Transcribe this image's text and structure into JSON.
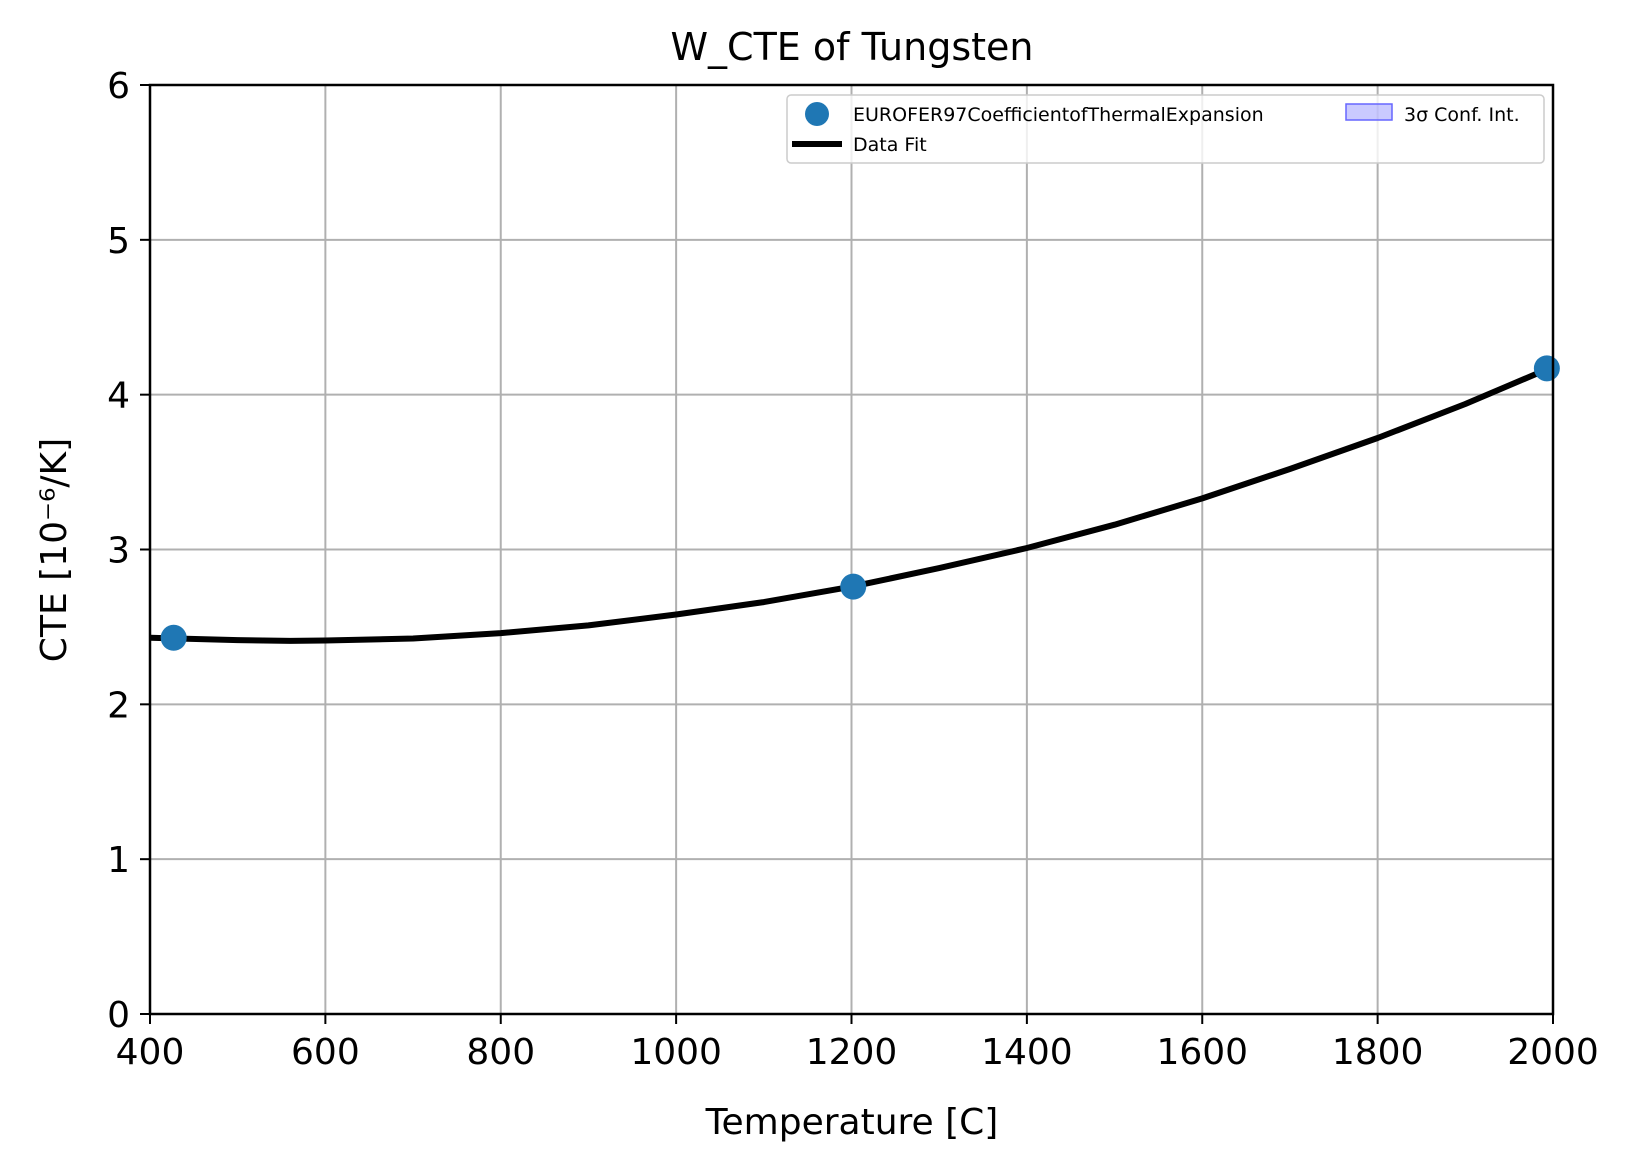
{
  "chart_data": {
    "type": "scatter",
    "title": "W_CTE of Tungsten",
    "xlabel": "Temperature [C]",
    "ylabel": "CTE [10⁻⁶/K]",
    "xlim": [
      400,
      2000
    ],
    "ylim": [
      0,
      6
    ],
    "xticks": [
      "400",
      "600",
      "800",
      "1000",
      "1200",
      "1400",
      "1600",
      "1800",
      "2000"
    ],
    "yticks": [
      "0",
      "1",
      "2",
      "3",
      "4",
      "5",
      "6"
    ],
    "grid": true,
    "legend_placement": "upper right",
    "series": [
      {
        "name": "EUROFER97CoefficientofThermalExpansion",
        "kind": "scatter",
        "color": "#1f77b4",
        "points": [
          {
            "x": 427,
            "y": 2.43
          },
          {
            "x": 1202,
            "y": 2.76
          },
          {
            "x": 1993,
            "y": 4.17
          }
        ]
      },
      {
        "name": "Data Fit",
        "kind": "line",
        "color": "#000000",
        "points": [
          {
            "x": 400,
            "y": 2.43
          },
          {
            "x": 500,
            "y": 2.415
          },
          {
            "x": 560,
            "y": 2.41
          },
          {
            "x": 600,
            "y": 2.412
          },
          {
            "x": 700,
            "y": 2.425
          },
          {
            "x": 800,
            "y": 2.46
          },
          {
            "x": 900,
            "y": 2.51
          },
          {
            "x": 1000,
            "y": 2.58
          },
          {
            "x": 1100,
            "y": 2.66
          },
          {
            "x": 1200,
            "y": 2.76
          },
          {
            "x": 1300,
            "y": 2.88
          },
          {
            "x": 1400,
            "y": 3.01
          },
          {
            "x": 1500,
            "y": 3.16
          },
          {
            "x": 1600,
            "y": 3.33
          },
          {
            "x": 1700,
            "y": 3.52
          },
          {
            "x": 1800,
            "y": 3.72
          },
          {
            "x": 1900,
            "y": 3.94
          },
          {
            "x": 2000,
            "y": 4.18
          }
        ]
      },
      {
        "name": "3σ Conf. Int.",
        "kind": "band",
        "color": "#6666ff"
      }
    ]
  }
}
